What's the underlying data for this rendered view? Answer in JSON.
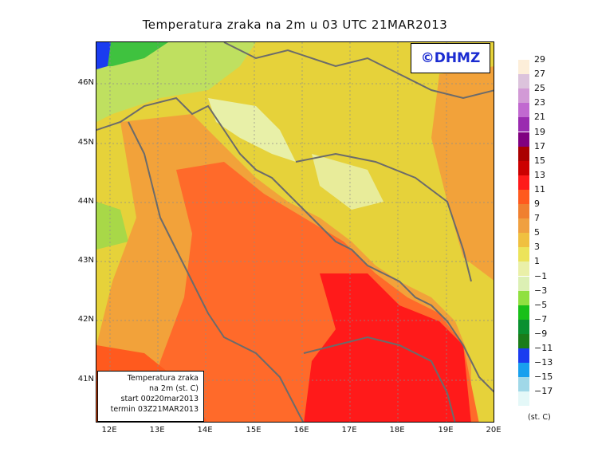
{
  "title": "Temperatura zraka na 2m u 03 UTC 21MAR2013",
  "copyright": "©DHMZ",
  "map": {
    "lon_ticks": [
      "12E",
      "13E",
      "14E",
      "15E",
      "16E",
      "17E",
      "18E",
      "19E",
      "20E"
    ],
    "lat_ticks": [
      "46N",
      "45N",
      "44N",
      "43N",
      "42N",
      "41N"
    ],
    "lon_range": [
      11.75,
      20.0
    ],
    "lat_range": [
      40.25,
      46.75
    ],
    "colors": {
      "coast_line": "#6b6b6b",
      "grid_line": "#8c8c8c",
      "sea_warm": "#ff1a1a",
      "sea_mild": "#ff6a2a",
      "land_base": "#e6d23a"
    }
  },
  "infobox": {
    "line1": "Temperatura zraka",
    "line2": "na 2m (st. C)",
    "line3": "start 00z20mar2013",
    "line4": "termin 03Z21MAR2013"
  },
  "legend": {
    "unit": "(st. C)",
    "labels": [
      "29",
      "27",
      "25",
      "23",
      "21",
      "19",
      "17",
      "15",
      "13",
      "11",
      "9",
      "7",
      "5",
      "3",
      "1",
      "−1",
      "−3",
      "−5",
      "−7",
      "−9",
      "−11",
      "−13",
      "−15",
      "−17"
    ],
    "colors": [
      "#fdeed9",
      "#dcc3dc",
      "#d29ad6",
      "#c169d0",
      "#9a2bb0",
      "#800080",
      "#aa0000",
      "#cc0000",
      "#ff1a1a",
      "#ff5a1e",
      "#f08030",
      "#f0a040",
      "#f0c040",
      "#ece35a",
      "#eaf0a8",
      "#dcf0b4",
      "#90e040",
      "#18c018",
      "#0a9030",
      "#1a7c1a",
      "#1a3cf0",
      "#18a0ee",
      "#a0d8e8",
      "#e4f8f8"
    ]
  }
}
